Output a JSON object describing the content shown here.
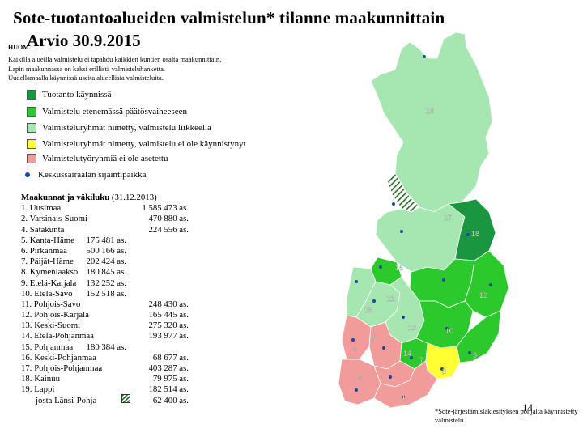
{
  "title": "Sote-tuotantoalueiden valmistelun* tilanne maakunnittain",
  "subtitle": "Arvio 30.9.2015",
  "huom": "HUOM.",
  "notes": [
    "Kaikilla alueilla valmistelu ei tapahdu kaikkien kuntien osalta maakunnittain.",
    "Lapin maakunnassa on kaksi erillistä valmisteluhanketta.",
    "Uudellamaalla käynnissä useita alueellisia valmisteluita."
  ],
  "legend": [
    {
      "label": "Tuotanto käynnissä",
      "color": "#1a9641"
    },
    {
      "label": "Valmistelu etenemässä päätösvaiheeseen",
      "color": "#2cc92c"
    },
    {
      "label": "Valmisteluryhmät nimetty, valmistelu liikkeellä",
      "color": "#a6e6b0"
    },
    {
      "label": "Valmisteluryhmät nimetty, valmistelu ei ole käynnistynyt",
      "color": "#ffff33"
    },
    {
      "label": "Valmistelutyöryhmiä ei ole asetettu",
      "color": "#f29b9b"
    }
  ],
  "legend_marker_label": "Keskussairaalan sijaintipaikka",
  "table_heading": "Maakunnat ja väkiluku",
  "table_heading_year": " (31.12.2013)",
  "regions": [
    {
      "name": "1.  Uusimaa",
      "population": "1 585 473 as.",
      "col": 2
    },
    {
      "name": "2.  Varsinais-Suomi",
      "population": "470 880 as.",
      "col": 2
    },
    {
      "name": "4. Satakunta",
      "population": "224 556 as.",
      "col": 2
    },
    {
      "name": "5. Kanta-Häme",
      "population": "175 481 as.",
      "col": 1
    },
    {
      "name": "6. Pirkanmaa",
      "population": "500 166 as.",
      "col": 1
    },
    {
      "name": "7. Päijät-Häme",
      "population": "202 424 as.",
      "col": 1
    },
    {
      "name": "8. Kymenlaakso",
      "population": "180 845 as.",
      "col": 1
    },
    {
      "name": "9. Etelä-Karjala",
      "population": "132 252 as.",
      "col": 1
    },
    {
      "name": "10. Etelä-Savo",
      "population": "152 518 as.",
      "col": 1
    },
    {
      "name": "11. Pohjois-Savo",
      "population": "248 430 as.",
      "col": 2
    },
    {
      "name": "12. Pohjois-Karjala",
      "population": "165 445 as.",
      "col": 2
    },
    {
      "name": "13. Keski-Suomi",
      "population": "275 320 as.",
      "col": 2
    },
    {
      "name": "14. Etelä-Pohjanmaa",
      "population": "193 977 as.",
      "col": 2
    },
    {
      "name": "15. Pohjanmaa",
      "population": "180 384 as.",
      "col": 1
    },
    {
      "name": "16. Keski-Pohjanmaa",
      "population": "68 677 as.",
      "col": 2
    },
    {
      "name": "17. Pohjois-Pohjanmaa",
      "population": "403 287 as.",
      "col": 2
    },
    {
      "name": "18. Kainuu",
      "population": "79 975 as.",
      "col": 2
    },
    {
      "name": "19. Lappi",
      "population": "182 514 as.",
      "col": 2
    },
    {
      "name": "josta Länsi-Pohja",
      "population": "62 400 as.",
      "col": 2
    }
  ],
  "map_labels": [
    "19",
    "17",
    "18",
    "16",
    "11",
    "15",
    "12",
    "13",
    "14",
    "10",
    "4",
    "6",
    "7",
    "3",
    "9",
    "8",
    "1"
  ],
  "page_number": "14",
  "footnote": "*Sote-järjestämislakiesityksen pohjalta käynnistetty valmistelu"
}
